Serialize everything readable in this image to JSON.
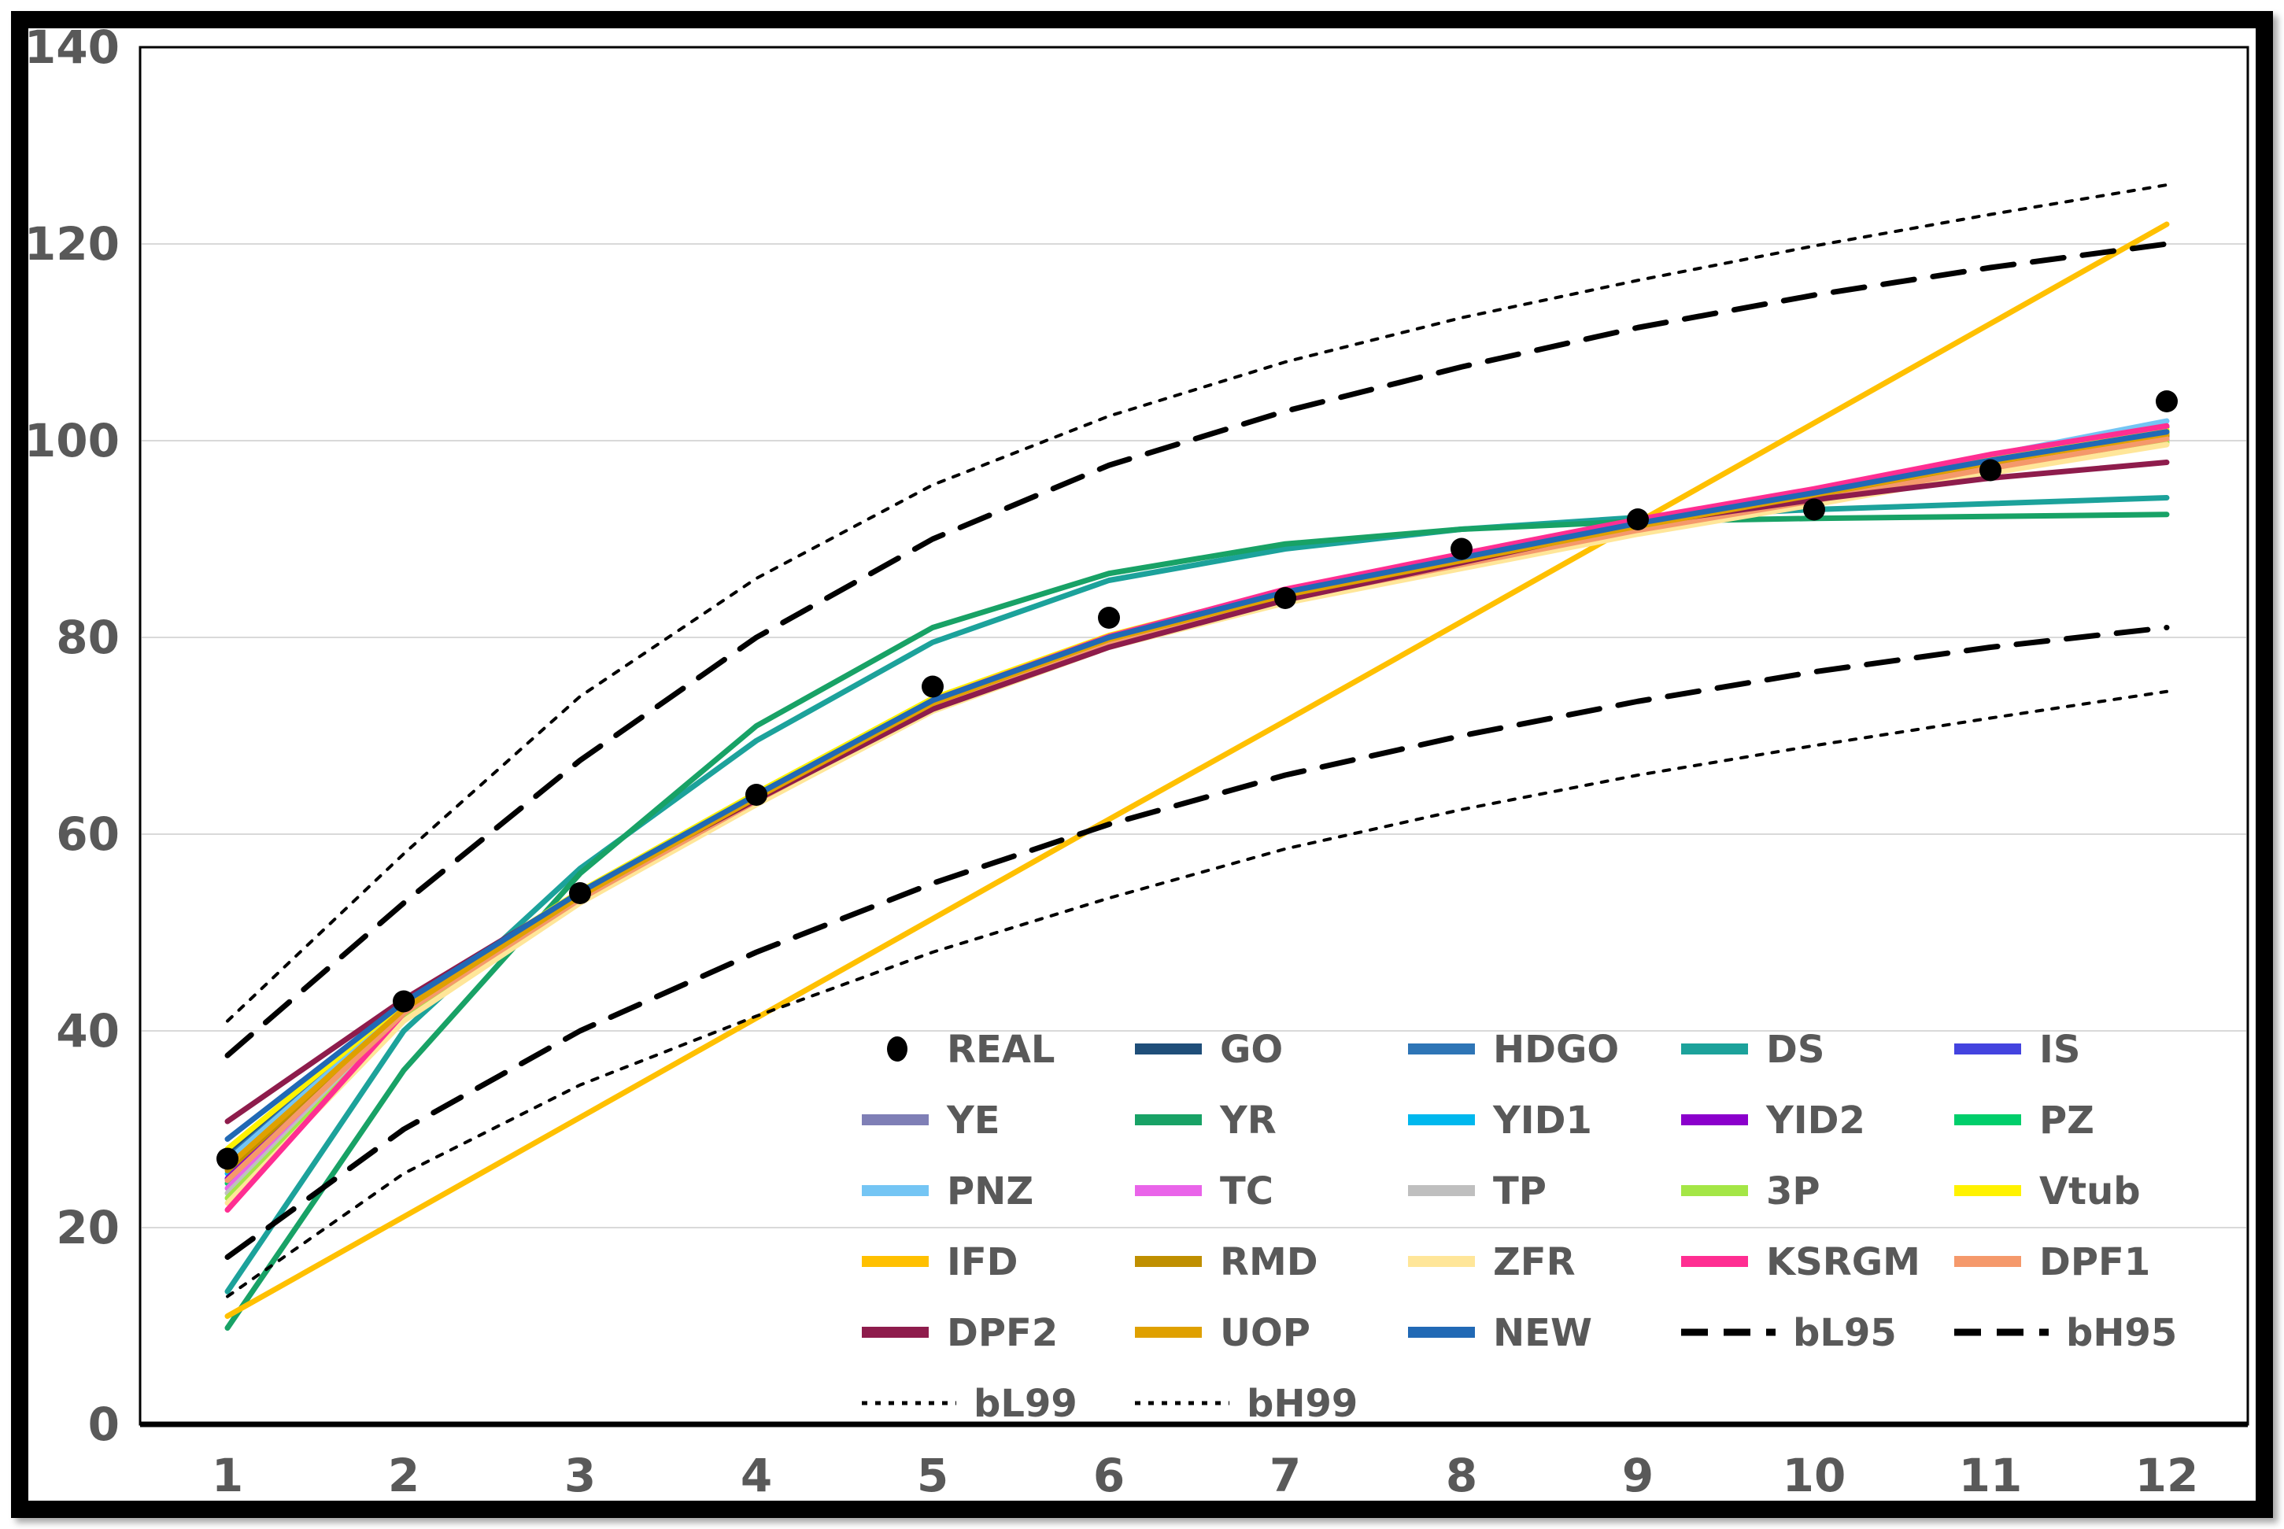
{
  "figure": {
    "background": "#FFFFFF",
    "border_color": "#000000",
    "title": ""
  },
  "axes": {
    "x_tick_labels": [
      "1",
      "2",
      "3",
      "4",
      "5",
      "6",
      "7",
      "8",
      "9",
      "10",
      "11",
      "12"
    ],
    "y_tick_labels": [
      "0",
      "20",
      "40",
      "60",
      "80",
      "100",
      "120",
      "140"
    ],
    "y_min": 0,
    "y_max": 140,
    "y_step": 20,
    "tick_label_color": "#595959",
    "gridline_color": "#D9D9D9",
    "axis_line_color": "#000000"
  },
  "legend": {
    "position": "inside-bottom-right",
    "columns": 5,
    "rows": 6,
    "text_color": "#595959"
  },
  "chart_data": {
    "type": "line",
    "x": [
      1,
      2,
      3,
      4,
      5,
      6,
      7,
      8,
      9,
      10,
      11,
      12
    ],
    "xlabel": "",
    "ylabel": "",
    "ylim": [
      0,
      140
    ],
    "grid": "horizontal",
    "legend_position": "inside-bottom-right",
    "series": [
      {
        "name": "REAL",
        "style": "points",
        "color": "#000000",
        "values": [
          27,
          43,
          54,
          64,
          75,
          82,
          84,
          89,
          92,
          93,
          97,
          104
        ]
      },
      {
        "name": "GO",
        "style": "solid",
        "color": "#1F4E79",
        "values": [
          27.5,
          42.6,
          54.0,
          64.0,
          73.5,
          80.0,
          84.5,
          88.0,
          91.5,
          94.6,
          97.9,
          100.9
        ]
      },
      {
        "name": "HDGO",
        "style": "solid",
        "color": "#2E75B6",
        "values": [
          27.0,
          42.5,
          54.1,
          64.1,
          73.7,
          80.1,
          84.7,
          88.2,
          91.7,
          94.8,
          98.2,
          101.4
        ]
      },
      {
        "name": "DS",
        "style": "solid",
        "color": "#1CA29B",
        "values": [
          13.5,
          40.0,
          56.5,
          69.5,
          79.5,
          85.8,
          89.0,
          91.0,
          92.2,
          93.0,
          93.6,
          94.2
        ]
      },
      {
        "name": "IS",
        "style": "solid",
        "color": "#4343DF",
        "values": [
          26.5,
          42.3,
          53.8,
          63.8,
          73.3,
          79.8,
          84.3,
          87.8,
          91.3,
          94.4,
          97.6,
          100.6
        ]
      },
      {
        "name": "YE",
        "style": "solid",
        "color": "#7F7FB6",
        "values": [
          26.0,
          42.2,
          53.7,
          63.7,
          73.2,
          79.7,
          84.2,
          87.7,
          91.2,
          94.2,
          97.4,
          100.4
        ]
      },
      {
        "name": "YR",
        "style": "solid",
        "color": "#18A266",
        "values": [
          9.8,
          36.0,
          56.0,
          71.0,
          81.0,
          86.5,
          89.5,
          91.0,
          91.8,
          92.1,
          92.3,
          92.5
        ]
      },
      {
        "name": "YID1",
        "style": "solid",
        "color": "#00B8EE",
        "values": [
          25.5,
          42.0,
          53.6,
          63.6,
          73.1,
          79.6,
          84.1,
          87.6,
          91.1,
          94.3,
          97.7,
          101.0
        ]
      },
      {
        "name": "YID2",
        "style": "solid",
        "color": "#8B00CC",
        "values": [
          25.0,
          41.9,
          53.5,
          63.5,
          73.0,
          79.5,
          84.0,
          87.5,
          91.0,
          94.0,
          97.1,
          100.1
        ]
      },
      {
        "name": "PZ",
        "style": "solid",
        "color": "#00CE6B",
        "values": [
          24.5,
          41.7,
          53.4,
          63.4,
          72.9,
          79.4,
          83.9,
          87.4,
          90.9,
          93.9,
          97.3,
          100.8
        ]
      },
      {
        "name": "PNZ",
        "style": "solid",
        "color": "#74C5F4",
        "values": [
          26.8,
          42.4,
          53.9,
          63.9,
          73.4,
          79.9,
          84.4,
          87.9,
          91.4,
          94.7,
          98.5,
          102.0
        ]
      },
      {
        "name": "TC",
        "style": "solid",
        "color": "#E964E9",
        "values": [
          24.0,
          41.6,
          53.3,
          63.3,
          72.8,
          79.3,
          83.8,
          87.3,
          90.8,
          93.8,
          97.0,
          100.0
        ]
      },
      {
        "name": "TP",
        "style": "solid",
        "color": "#BFBFBF",
        "values": [
          23.5,
          41.5,
          53.2,
          63.2,
          72.7,
          79.2,
          83.7,
          87.2,
          90.7,
          93.7,
          96.9,
          99.9
        ]
      },
      {
        "name": "3P",
        "style": "solid",
        "color": "#A4E646",
        "values": [
          23.0,
          41.3,
          53.1,
          63.1,
          72.6,
          79.1,
          83.6,
          87.1,
          90.6,
          93.6,
          96.8,
          99.8
        ]
      },
      {
        "name": "Vtub",
        "style": "solid",
        "color": "#FFF200",
        "values": [
          28.0,
          42.8,
          54.2,
          64.2,
          73.8,
          80.2,
          84.8,
          88.3,
          91.8,
          94.9,
          98.1,
          101.1
        ]
      },
      {
        "name": "IFD",
        "style": "solid",
        "color": "#FFC000",
        "values": [
          11.0,
          21.1,
          31.2,
          41.3,
          51.4,
          61.5,
          71.5,
          81.6,
          91.7,
          101.8,
          111.9,
          122.0
        ]
      },
      {
        "name": "RMD",
        "style": "solid",
        "color": "#BF8F00",
        "values": [
          25.8,
          42.1,
          53.6,
          63.6,
          73.2,
          79.7,
          84.2,
          87.7,
          91.2,
          94.3,
          97.5,
          100.5
        ]
      },
      {
        "name": "ZFR",
        "style": "solid",
        "color": "#FFE699",
        "values": [
          22.5,
          41.0,
          53.0,
          63.0,
          72.5,
          79.0,
          83.5,
          87.0,
          90.5,
          93.5,
          96.7,
          99.6
        ]
      },
      {
        "name": "KSRGM",
        "style": "solid",
        "color": "#FF2E92",
        "values": [
          21.8,
          41.8,
          53.5,
          63.4,
          73.6,
          80.1,
          84.9,
          88.5,
          92.0,
          95.1,
          98.6,
          101.5
        ]
      },
      {
        "name": "DPF1",
        "style": "solid",
        "color": "#F5996B",
        "values": [
          24.8,
          41.8,
          53.4,
          63.4,
          72.9,
          79.4,
          83.9,
          87.4,
          90.9,
          93.9,
          97.2,
          100.2
        ]
      },
      {
        "name": "DPF2",
        "style": "solid",
        "color": "#8E1C4C",
        "values": [
          30.8,
          43.2,
          54.0,
          63.5,
          72.7,
          79.0,
          83.8,
          87.6,
          91.5,
          94.0,
          96.2,
          97.8
        ]
      },
      {
        "name": "UOP",
        "style": "solid",
        "color": "#DFA000",
        "values": [
          26.2,
          42.2,
          53.7,
          63.7,
          73.3,
          79.8,
          84.3,
          87.8,
          91.3,
          94.5,
          97.8,
          100.7
        ]
      },
      {
        "name": "NEW",
        "style": "solid",
        "color": "#2169B5",
        "values": [
          29.0,
          42.9,
          54.1,
          64.0,
          73.6,
          80.0,
          84.6,
          88.1,
          91.6,
          94.7,
          98.0,
          100.9
        ]
      },
      {
        "name": "bL95",
        "style": "dashed",
        "color": "#000000",
        "values": [
          17.0,
          30.0,
          40.0,
          48.0,
          55.0,
          61.0,
          66.0,
          70.0,
          73.5,
          76.5,
          79.0,
          81.0
        ]
      },
      {
        "name": "bH95",
        "style": "dashed",
        "color": "#000000",
        "values": [
          37.5,
          53.0,
          67.5,
          80.0,
          90.0,
          97.5,
          103.0,
          107.5,
          111.5,
          114.8,
          117.6,
          120.0
        ]
      },
      {
        "name": "bL99",
        "style": "dotted",
        "color": "#000000",
        "values": [
          13.0,
          25.5,
          34.5,
          41.5,
          48.0,
          53.5,
          58.5,
          62.5,
          66.0,
          69.0,
          71.8,
          74.5
        ]
      },
      {
        "name": "bH99",
        "style": "dotted",
        "color": "#000000",
        "values": [
          41.0,
          58.0,
          74.0,
          86.0,
          95.5,
          102.5,
          108.0,
          112.5,
          116.3,
          119.8,
          123.0,
          126.0
        ]
      }
    ]
  }
}
